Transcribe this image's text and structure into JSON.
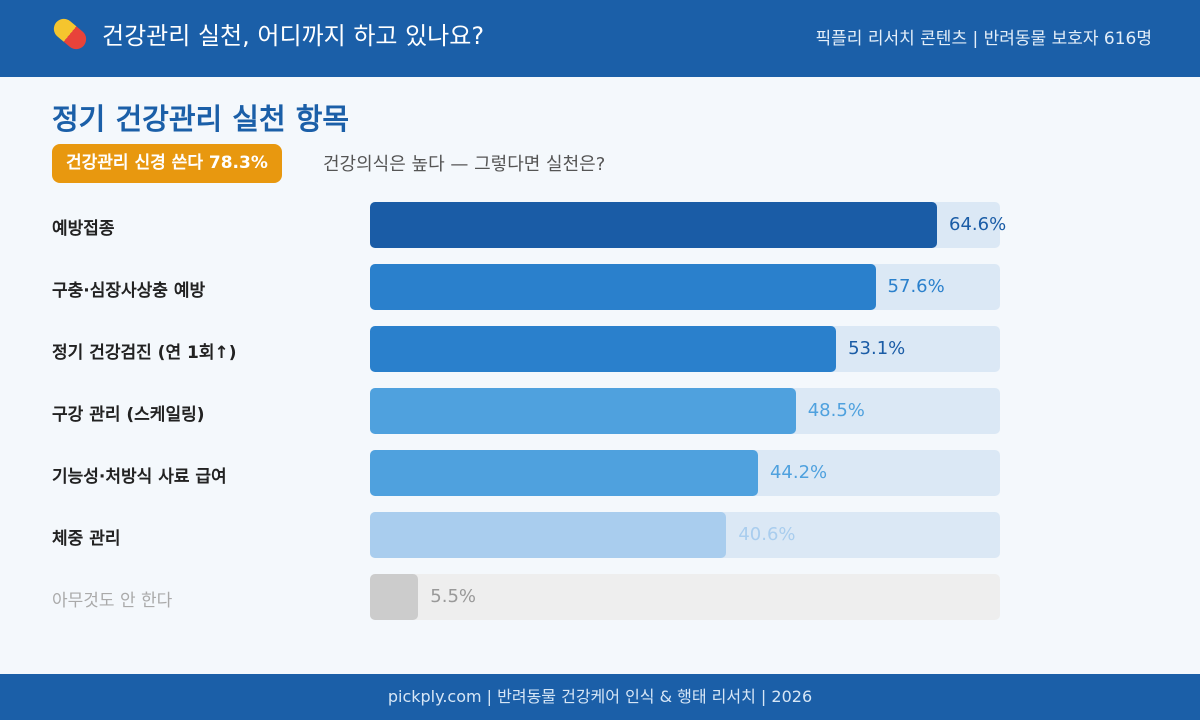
{
  "header": {
    "title": "건강관리 실천, 어디까지 하고 있나요?",
    "icon": "pill-icon",
    "meta": "픽플리 리서치 콘텐츠 | 반려동물 보호자 616명"
  },
  "section_title": "정기 건강관리 실천 항목",
  "badge": "건강관리 신경 쓴다 78.3%",
  "subtitle": "건강의식은 높다 — 그렇다면 실천은?",
  "chart_data": {
    "type": "bar",
    "orientation": "horizontal",
    "categories": [
      "예방접종",
      "구충·심장사상충 예방",
      "정기 건강검진 (연 1회↑)",
      "구강 관리 (스케일링)",
      "기능성·처방식 사료 급여",
      "체중 관리",
      "아무것도 안 한다"
    ],
    "values": [
      64.6,
      57.6,
      53.1,
      48.5,
      44.2,
      40.6,
      5.5
    ],
    "value_labels": [
      "64.6%",
      "57.6%",
      "53.1%",
      "48.5%",
      "44.2%",
      "40.6%",
      "5.5%"
    ],
    "unit": "%",
    "colors": [
      "#1a5ca6",
      "#2a80cc",
      "#2a80cc",
      "#4fa1de",
      "#4fa1de",
      "#a9cdee",
      "#cccccc"
    ],
    "label_colors": [
      "#1a5ca6",
      "#2a80cc",
      "#1a5ca6",
      "#4fa1de",
      "#4fa1de",
      "#a9cdee",
      "#999999"
    ],
    "category_colors": [
      "#222222",
      "#222222",
      "#222222",
      "#222222",
      "#222222",
      "#222222",
      "#aaaaaa"
    ],
    "track_colors": [
      "#dbe8f5",
      "#dbe8f5",
      "#dbe8f5",
      "#dbe8f5",
      "#dbe8f5",
      "#dbe8f5",
      "#eeeeee"
    ],
    "grid": false
  },
  "footer": "pickply.com  |  반려동물 건강케어 인식 & 행태 리서치  |  2026"
}
